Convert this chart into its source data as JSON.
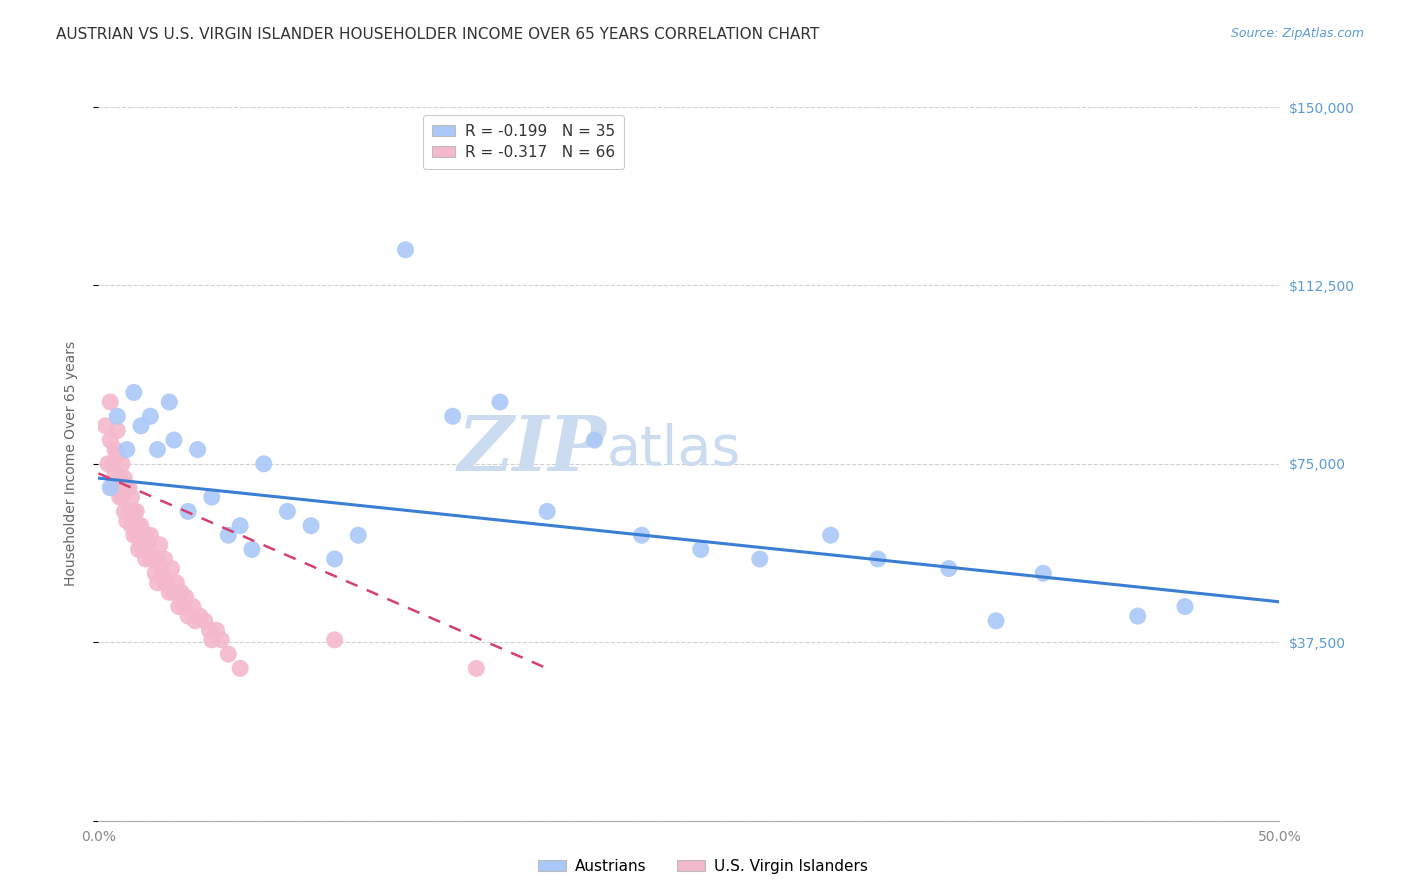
{
  "title": "AUSTRIAN VS U.S. VIRGIN ISLANDER HOUSEHOLDER INCOME OVER 65 YEARS CORRELATION CHART",
  "source": "Source: ZipAtlas.com",
  "ylabel": "Householder Income Over 65 years",
  "xlim": [
    0,
    0.5
  ],
  "ylim": [
    0,
    150000
  ],
  "yticks": [
    0,
    37500,
    75000,
    112500,
    150000
  ],
  "ytick_labels_right": [
    "",
    "$37,500",
    "$75,000",
    "$112,500",
    "$150,000"
  ],
  "xticks": [
    0.0,
    0.1,
    0.2,
    0.3,
    0.4,
    0.5
  ],
  "xtick_labels": [
    "0.0%",
    "",
    "",
    "",
    "",
    "50.0%"
  ],
  "watermark_zip": "ZIP",
  "watermark_atlas": "atlas",
  "legend_r_blue": "R = -0.199",
  "legend_n_blue": "N = 35",
  "legend_r_pink": "R = -0.317",
  "legend_n_pink": "N = 66",
  "blue_scatter_x": [
    0.005,
    0.008,
    0.012,
    0.015,
    0.018,
    0.022,
    0.025,
    0.03,
    0.032,
    0.038,
    0.042,
    0.048,
    0.055,
    0.06,
    0.065,
    0.07,
    0.08,
    0.09,
    0.1,
    0.11,
    0.13,
    0.15,
    0.17,
    0.19,
    0.21,
    0.23,
    0.255,
    0.28,
    0.31,
    0.33,
    0.36,
    0.38,
    0.4,
    0.44,
    0.46
  ],
  "blue_scatter_y": [
    70000,
    85000,
    78000,
    90000,
    83000,
    85000,
    78000,
    88000,
    80000,
    65000,
    78000,
    68000,
    60000,
    62000,
    57000,
    75000,
    65000,
    62000,
    55000,
    60000,
    120000,
    85000,
    88000,
    65000,
    80000,
    60000,
    57000,
    55000,
    60000,
    55000,
    53000,
    42000,
    52000,
    43000,
    45000
  ],
  "pink_scatter_x": [
    0.003,
    0.004,
    0.005,
    0.005,
    0.006,
    0.006,
    0.007,
    0.007,
    0.008,
    0.008,
    0.009,
    0.009,
    0.01,
    0.01,
    0.011,
    0.011,
    0.012,
    0.012,
    0.013,
    0.013,
    0.014,
    0.014,
    0.015,
    0.015,
    0.016,
    0.016,
    0.017,
    0.017,
    0.018,
    0.018,
    0.019,
    0.02,
    0.02,
    0.021,
    0.022,
    0.022,
    0.023,
    0.024,
    0.025,
    0.025,
    0.026,
    0.027,
    0.028,
    0.028,
    0.029,
    0.03,
    0.031,
    0.032,
    0.033,
    0.034,
    0.035,
    0.036,
    0.037,
    0.038,
    0.04,
    0.041,
    0.043,
    0.045,
    0.047,
    0.048,
    0.05,
    0.052,
    0.055,
    0.06,
    0.1,
    0.16
  ],
  "pink_scatter_y": [
    83000,
    75000,
    88000,
    80000,
    75000,
    70000,
    78000,
    73000,
    82000,
    77000,
    68000,
    72000,
    75000,
    68000,
    72000,
    65000,
    70000,
    63000,
    70000,
    65000,
    62000,
    68000,
    65000,
    60000,
    65000,
    60000,
    62000,
    57000,
    58000,
    62000,
    57000,
    55000,
    60000,
    58000,
    55000,
    60000,
    55000,
    52000,
    55000,
    50000,
    58000,
    52000,
    50000,
    55000,
    50000,
    48000,
    53000,
    48000,
    50000,
    45000,
    48000,
    45000,
    47000,
    43000,
    45000,
    42000,
    43000,
    42000,
    40000,
    38000,
    40000,
    38000,
    35000,
    32000,
    38000,
    32000
  ],
  "blue_color": "#aac8f8",
  "pink_color": "#f4b8cc",
  "blue_line_color": "#3a7fd4",
  "pink_line_color": "#d44070",
  "background_color": "#ffffff",
  "grid_color": "#d0d0d0",
  "title_fontsize": 11,
  "source_fontsize": 9,
  "axis_label_fontsize": 10,
  "tick_fontsize": 10,
  "watermark_color": "#ccdcf0",
  "right_ylabel_color": "#5b9bd5"
}
